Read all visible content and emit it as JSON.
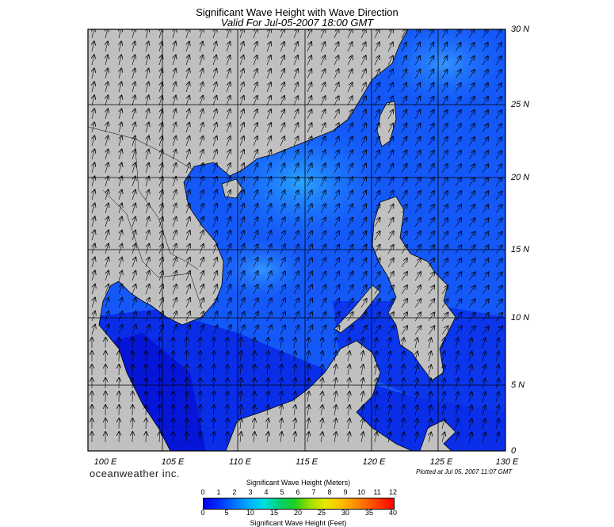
{
  "title": "Significant Wave Height with Wave Direction",
  "subtitle": "Valid For Jul-05-2007 18:00 GMT",
  "lon_labels": [
    "100 E",
    "105 E",
    "110 E",
    "115 E",
    "120 E",
    "125 E",
    "130 E"
  ],
  "lat_labels": [
    "30 N",
    "25 N",
    "20 N",
    "15 N",
    "10 N",
    "5 N",
    "0"
  ],
  "brand": "oceanweather inc.",
  "plotted": "Plotted at Jul 05, 2007 11:07 GMT",
  "colorbar": {
    "meters_label": "Significant Wave Height (Meters)",
    "feet_label": "Significant Wave Height (Feet)",
    "meters_ticks": [
      "0",
      "1",
      "2",
      "3",
      "4",
      "5",
      "6",
      "7",
      "8",
      "9",
      "10",
      "11",
      "12"
    ],
    "feet_ticks": [
      "0",
      "5",
      "10",
      "15",
      "20",
      "25",
      "30",
      "35",
      "40"
    ]
  },
  "colors": {
    "land": "#c0c0c0",
    "sea_low": "#0000e6",
    "sea_mid": "#1a5cff",
    "sea_high": "#2a9cff",
    "grid": "#000000"
  }
}
